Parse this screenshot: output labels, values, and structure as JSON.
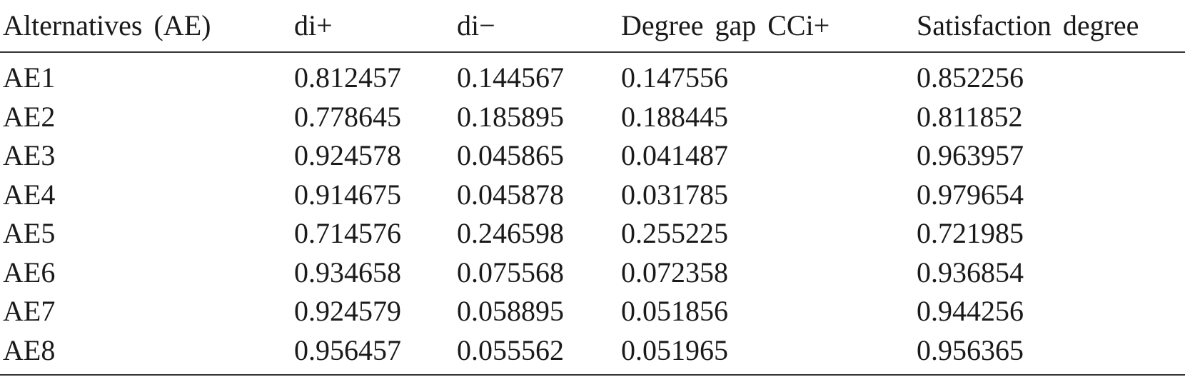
{
  "table": {
    "headers": [
      "Alternatives (AE)",
      "di+",
      "di−",
      "Degree gap CCi+",
      "Satisfaction degree"
    ],
    "rows": [
      [
        "AE1",
        "0.812457",
        "0.144567",
        "0.147556",
        "0.852256"
      ],
      [
        "AE2",
        "0.778645",
        "0.185895",
        "0.188445",
        "0.811852"
      ],
      [
        "AE3",
        "0.924578",
        "0.045865",
        "0.041487",
        "0.963957"
      ],
      [
        "AE4",
        "0.914675",
        "0.045878",
        "0.031785",
        "0.979654"
      ],
      [
        "AE5",
        "0.714576",
        "0.246598",
        "0.255225",
        "0.721985"
      ],
      [
        "AE6",
        "0.934658",
        "0.075568",
        "0.072358",
        "0.936854"
      ],
      [
        "AE7",
        "0.924579",
        "0.058895",
        "0.051856",
        "0.944256"
      ],
      [
        "AE8",
        "0.956457",
        "0.055562",
        "0.051965",
        "0.956365"
      ]
    ]
  }
}
